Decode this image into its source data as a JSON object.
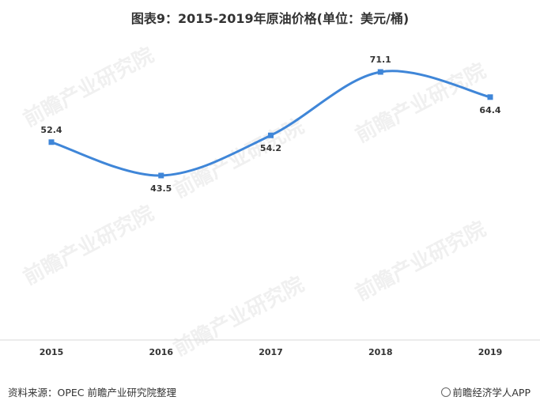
{
  "title": "图表9：2015-2019年原油价格(单位：美元/桶)",
  "watermark": "前瞻产业研究院",
  "footer": {
    "source": "资料来源：OPEC 前瞻产业研究院整理",
    "brand": "前瞻经济学人APP"
  },
  "colors": {
    "line": "#3f86d8",
    "axis": "#d9d9d9",
    "text": "#333333"
  },
  "chart_data": {
    "type": "line",
    "categories": [
      "2015",
      "2016",
      "2017",
      "2018",
      "2019"
    ],
    "series": [
      {
        "values": [
          52.4,
          43.5,
          54.2,
          71.1,
          64.4
        ]
      }
    ],
    "data_labels": [
      "52.4",
      "43.5",
      "54.2",
      "71.1",
      "64.4"
    ],
    "title": "图表9：2015-2019年原油价格(单位：美元/桶)",
    "xlabel": "",
    "ylabel": "",
    "grid": false,
    "smooth": true
  }
}
